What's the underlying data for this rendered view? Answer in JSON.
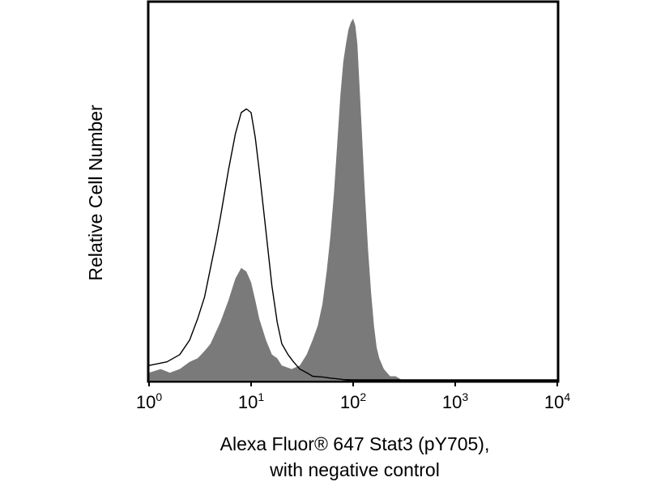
{
  "chart_data": {
    "type": "area",
    "title": "",
    "xlabel_lines": [
      "Alexa Fluor® 647 Stat3 (pY705),",
      "with negative control"
    ],
    "ylabel": "Relative Cell Number",
    "x_scale": "log",
    "xlim": [
      1,
      10000
    ],
    "ylim": [
      0,
      100
    ],
    "x_ticks": [
      {
        "base": "10",
        "exp": "0",
        "value": 1
      },
      {
        "base": "10",
        "exp": "1",
        "value": 10
      },
      {
        "base": "10",
        "exp": "2",
        "value": 100
      },
      {
        "base": "10",
        "exp": "3",
        "value": 1000
      },
      {
        "base": "10",
        "exp": "4",
        "value": 10000
      }
    ],
    "grid": false,
    "legend": "none",
    "series": [
      {
        "style": "filled",
        "color": "#7a7a7a",
        "x": [
          1,
          1.3,
          1.6,
          2,
          2.5,
          3,
          3.5,
          4,
          5,
          6,
          7,
          8,
          9,
          10,
          11,
          12,
          14,
          16,
          18,
          20,
          25,
          30,
          35,
          40,
          45,
          50,
          55,
          60,
          65,
          70,
          75,
          80,
          85,
          90,
          95,
          100,
          105,
          110,
          120,
          130,
          140,
          150,
          160,
          170,
          180,
          200,
          230,
          260,
          300,
          10000
        ],
        "y": [
          2,
          3,
          2,
          3,
          5,
          6,
          8,
          10,
          16,
          22,
          28,
          31,
          30,
          27,
          22,
          17,
          11,
          7,
          6,
          4,
          3,
          4,
          7,
          11,
          15,
          21,
          30,
          40,
          52,
          66,
          79,
          88,
          93,
          97,
          99,
          100,
          98,
          93,
          72,
          52,
          36,
          24,
          15,
          9,
          6,
          3,
          1,
          1,
          0,
          0
        ]
      },
      {
        "style": "outline",
        "color": "#000000",
        "x": [
          1,
          1.5,
          2,
          2.5,
          3,
          3.5,
          4,
          4.5,
          5,
          6,
          7,
          8,
          9,
          10,
          11,
          12,
          14,
          16,
          18,
          20,
          23,
          26,
          30,
          35,
          40,
          50,
          60,
          70,
          80,
          100,
          10000
        ],
        "y": [
          4,
          5,
          7,
          11,
          17,
          23,
          31,
          38,
          45,
          58,
          68,
          74,
          75,
          74,
          67,
          58,
          41,
          26,
          16,
          10,
          7,
          5,
          3,
          2,
          1,
          0.8,
          0.5,
          0.3,
          0.1,
          0,
          0
        ]
      }
    ]
  }
}
